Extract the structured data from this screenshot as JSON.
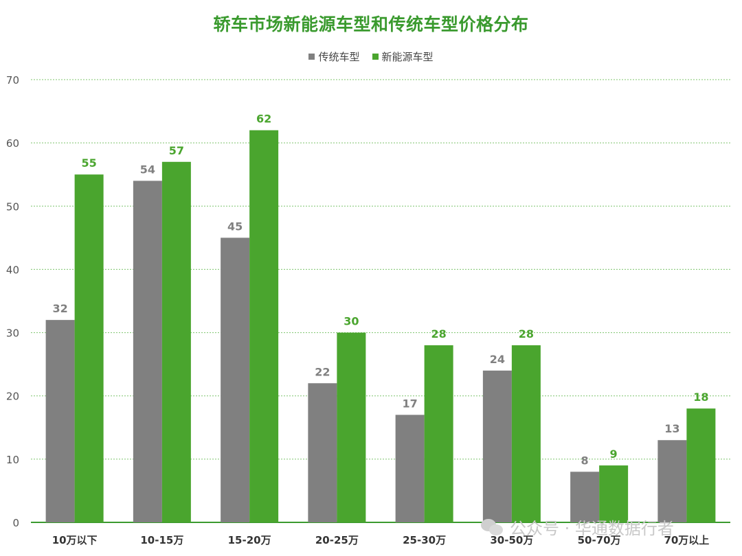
{
  "colors": {
    "traditional": "#808080",
    "nev": "#4aa52e",
    "title": "#3a9a2e",
    "grid": "#7cc46b",
    "axis": "#3a9a2e"
  },
  "chart_data": {
    "type": "bar",
    "title": "轿车市场新能源车型和传统车型价格分布",
    "xlabel": "",
    "ylabel": "",
    "ylim": [
      0,
      70
    ],
    "yticks": [
      "0",
      "10",
      "20",
      "30",
      "40",
      "50",
      "60",
      "70"
    ],
    "grid": true,
    "legend_position": "top-center",
    "categories": [
      "10万以下",
      "10-15万",
      "15-20万",
      "20-25万",
      "25-30万",
      "30-50万",
      "50-70万",
      "70万以上"
    ],
    "series": [
      {
        "name": "传统车型",
        "values": [
          32,
          54,
          45,
          22,
          17,
          24,
          8,
          13
        ],
        "color": "#808080"
      },
      {
        "name": "新能源车型",
        "values": [
          55,
          57,
          62,
          30,
          28,
          28,
          9,
          18
        ],
        "color": "#4aa52e"
      }
    ]
  },
  "watermark": {
    "text": "公众号 · 华通数据行者",
    "icon": "wechat-icon"
  }
}
